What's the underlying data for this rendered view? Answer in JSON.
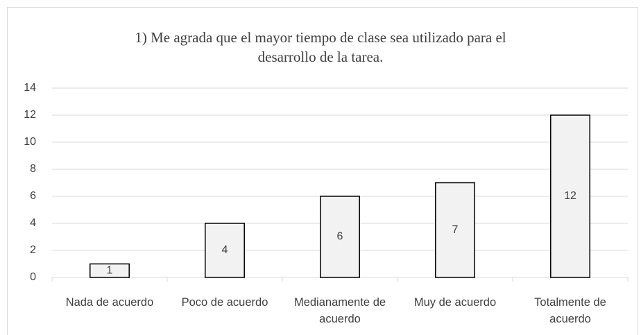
{
  "chart_data": {
    "type": "bar",
    "title": "1) Me agrada que el mayor tiempo de clase sea utilizado para el desarrollo de la tarea.",
    "categories": [
      "Nada de acuerdo",
      "Poco de acuerdo",
      "Medianamente de acuerdo",
      "Muy de acuerdo",
      "Totalmente de acuerdo"
    ],
    "values": [
      1,
      4,
      6,
      7,
      12
    ],
    "color": "#f2f2f2",
    "edge_color": "#000000",
    "ylim": [
      0,
      14
    ],
    "yticks": [
      0,
      2,
      4,
      6,
      8,
      10,
      12,
      14
    ],
    "grid": true
  }
}
